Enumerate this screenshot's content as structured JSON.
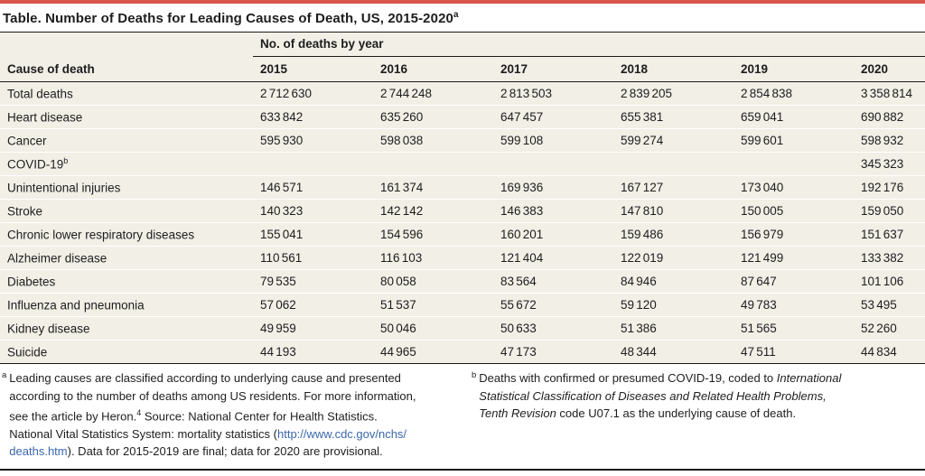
{
  "colors": {
    "accent_bar_red": "#d9544b",
    "table_band_beige": "#f1efe6",
    "rule_black": "#1a1a1a",
    "link_blue": "#3a67ad"
  },
  "title": {
    "text": "Table. Number of Deaths for Leading Causes of Death, US, 2015-2020",
    "sup": "a"
  },
  "table": {
    "group_header": "No. of deaths by year",
    "columns": [
      "Cause of death",
      "2015",
      "2016",
      "2017",
      "2018",
      "2019",
      "2020"
    ],
    "rows": [
      {
        "cause": "Total deaths",
        "sup": "",
        "values": [
          "2 712 630",
          "2 744 248",
          "2 813 503",
          "2 839 205",
          "2 854 838",
          "3 358 814"
        ]
      },
      {
        "cause": "Heart disease",
        "sup": "",
        "values": [
          "633 842",
          "635 260",
          "647 457",
          "655 381",
          "659 041",
          "690 882"
        ]
      },
      {
        "cause": "Cancer",
        "sup": "",
        "values": [
          "595 930",
          "598 038",
          "599 108",
          "599 274",
          "599 601",
          "598 932"
        ]
      },
      {
        "cause": "COVID-19",
        "sup": "b",
        "values": [
          "",
          "",
          "",
          "",
          "",
          "345 323"
        ]
      },
      {
        "cause": "Unintentional injuries",
        "sup": "",
        "values": [
          "146 571",
          "161 374",
          "169 936",
          "167 127",
          "173 040",
          "192 176"
        ]
      },
      {
        "cause": "Stroke",
        "sup": "",
        "values": [
          "140 323",
          "142 142",
          "146 383",
          "147 810",
          "150 005",
          "159 050"
        ]
      },
      {
        "cause": "Chronic lower respiratory diseases",
        "sup": "",
        "values": [
          "155 041",
          "154 596",
          "160 201",
          "159 486",
          "156 979",
          "151 637"
        ]
      },
      {
        "cause": "Alzheimer disease",
        "sup": "",
        "values": [
          "110 561",
          "116 103",
          "121 404",
          "122 019",
          "121 499",
          "133 382"
        ]
      },
      {
        "cause": "Diabetes",
        "sup": "",
        "values": [
          "79 535",
          "80 058",
          "83 564",
          "84 946",
          "87 647",
          "101 106"
        ]
      },
      {
        "cause": "Influenza and pneumonia",
        "sup": "",
        "values": [
          "57 062",
          "51 537",
          "55 672",
          "59 120",
          "49 783",
          "53 495"
        ]
      },
      {
        "cause": "Kidney disease",
        "sup": "",
        "values": [
          "49 959",
          "50 046",
          "50 633",
          "51 386",
          "51 565",
          "52 260"
        ]
      },
      {
        "cause": "Suicide",
        "sup": "",
        "values": [
          "44 193",
          "44 965",
          "47 173",
          "48 344",
          "47 511",
          "44 834"
        ]
      }
    ]
  },
  "footnotes": {
    "a": {
      "marker": "a",
      "line1": "Leading causes are classified according to underlying cause and presented",
      "line2": "according to the number of deaths among US residents. For more information,",
      "line3_pre": "see the article by Heron.",
      "line3_ref": "4",
      "line3_post": " Source: National Center for Health Statistics.",
      "line4_pre": "National Vital Statistics System: mortality statistics (",
      "line4_link": "http://www.cdc.gov/nchs/",
      "line5_link": "deaths.htm",
      "line5_post": "). Data for 2015-2019 are final; data for 2020 are provisional."
    },
    "b": {
      "marker": "b",
      "line1_pre": "Deaths with confirmed or presumed COVID-19, coded to ",
      "line1_italic": "International",
      "line2_italic": "Statistical Classification of Diseases and Related Health Problems,",
      "line3_italic": "Tenth Revision",
      "line3_post": " code U07.1 as the underlying cause of death."
    }
  }
}
